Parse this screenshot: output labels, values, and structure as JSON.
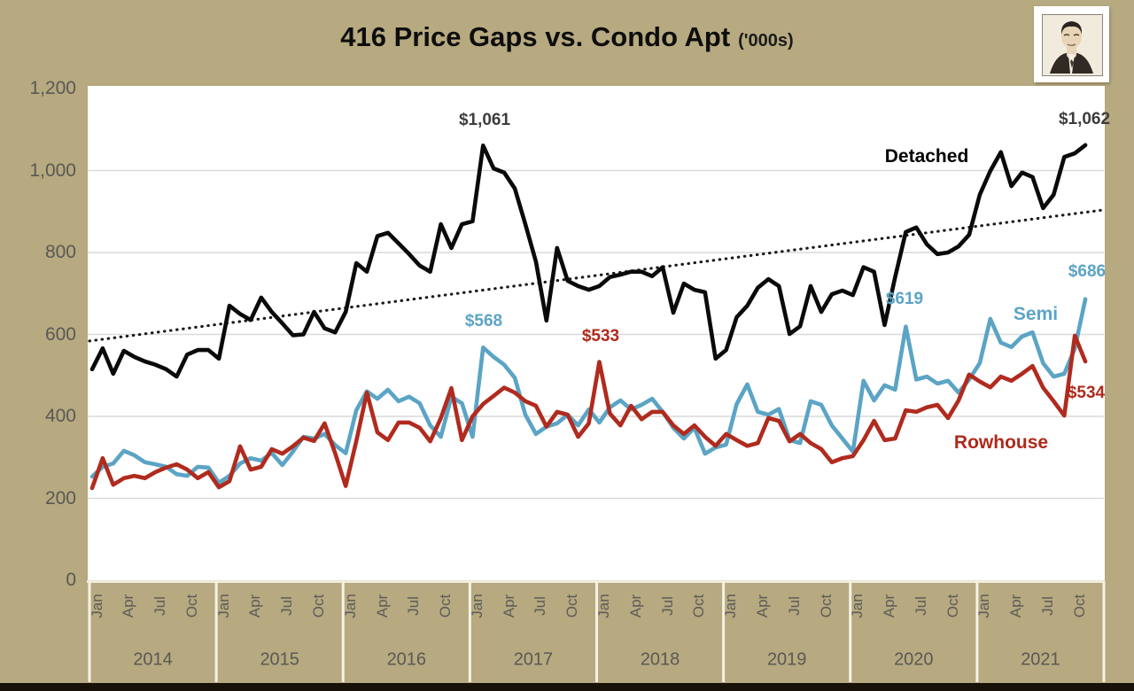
{
  "title": {
    "main": "416 Price Gaps vs. Condo Apt",
    "suffix": "('000s)"
  },
  "logo": {
    "description": "framed portrait sketch of a man in a suit"
  },
  "colors": {
    "background": "#b7a980",
    "plot_background": "#ffffff",
    "gridline": "#d9d9d9",
    "axis_text": "#595955",
    "separator_line": "#f6f2e6",
    "detached": "#0a0a0a",
    "semi": "#5ba4c5",
    "rowhouse": "#b02b1e",
    "trendline": "#1a1a1a",
    "annotation_dark": "#3d3d3d"
  },
  "y_axis": {
    "ticks": [
      "1,200",
      "1,000",
      "800",
      "600",
      "400",
      "200",
      "0"
    ],
    "tick_values": [
      1200,
      1000,
      800,
      600,
      400,
      200,
      0
    ]
  },
  "x_axis": {
    "years": [
      "2014",
      "2015",
      "2016",
      "2017",
      "2018",
      "2019",
      "2020",
      "2021"
    ],
    "month_ticks": [
      "Jan",
      "Apr",
      "Jul",
      "Oct"
    ]
  },
  "chart_data": {
    "type": "line",
    "title": "416 Price Gaps vs. Condo Apt ('000s)",
    "frequency": "monthly",
    "x_start": "2014-01",
    "x_end": "2021-11",
    "ylim": [
      0,
      1200
    ],
    "gridline_values": [
      200,
      400,
      600,
      800,
      1000
    ],
    "legend_position": "labels-on-chart",
    "series": [
      {
        "name": "Detached",
        "color": "#0a0a0a",
        "values": [
          515,
          566,
          504,
          560,
          545,
          534,
          526,
          515,
          497,
          551,
          562,
          562,
          541,
          670,
          650,
          635,
          690,
          655,
          627,
          598,
          600,
          655,
          615,
          605,
          655,
          774,
          753,
          840,
          848,
          822,
          796,
          768,
          753,
          869,
          811,
          869,
          876,
          1061,
          1005,
          995,
          956,
          869,
          778,
          634,
          811,
          731,
          718,
          709,
          718,
          740,
          746,
          753,
          753,
          742,
          764,
          653,
          724,
          709,
          703,
          541,
          562,
          642,
          670,
          714,
          735,
          718,
          601,
          620,
          718,
          655,
          698,
          707,
          696,
          764,
          753,
          623,
          740,
          850,
          861,
          820,
          796,
          800,
          815,
          843,
          941,
          999,
          1045,
          962,
          995,
          984,
          908,
          941,
          1033,
          1042,
          1062
        ]
      },
      {
        "name": "Semi",
        "color": "#5ba4c5",
        "values": [
          253,
          277,
          285,
          316,
          305,
          288,
          283,
          277,
          259,
          255,
          277,
          275,
          238,
          255,
          285,
          298,
          292,
          311,
          281,
          314,
          350,
          346,
          357,
          330,
          310,
          415,
          461,
          443,
          465,
          437,
          448,
          432,
          378,
          350,
          448,
          432,
          350,
          568,
          545,
          526,
          494,
          404,
          357,
          375,
          383,
          404,
          378,
          417,
          385,
          422,
          439,
          417,
          428,
          443,
          411,
          372,
          346,
          372,
          309,
          324,
          331,
          430,
          478,
          411,
          404,
          418,
          342,
          335,
          437,
          428,
          378,
          346,
          314,
          487,
          439,
          476,
          465,
          619,
          490,
          497,
          480,
          487,
          458,
          490,
          530,
          638,
          580,
          569,
          595,
          605,
          530,
          497,
          504,
          566,
          686
        ]
      },
      {
        "name": "Rowhouse",
        "color": "#b02b1e",
        "values": [
          225,
          298,
          233,
          249,
          255,
          249,
          264,
          275,
          283,
          270,
          249,
          264,
          227,
          242,
          327,
          270,
          277,
          320,
          309,
          327,
          348,
          340,
          383,
          310,
          230,
          340,
          458,
          361,
          342,
          385,
          385,
          372,
          339,
          396,
          469,
          342,
          400,
          430,
          450,
          470,
          458,
          437,
          426,
          375,
          411,
          404,
          350,
          383,
          533,
          407,
          378,
          426,
          393,
          411,
          411,
          378,
          357,
          378,
          350,
          328,
          357,
          342,
          328,
          335,
          396,
          389,
          339,
          357,
          335,
          320,
          288,
          298,
          303,
          342,
          389,
          342,
          346,
          415,
          411,
          422,
          428,
          396,
          439,
          502,
          485,
          471,
          497,
          487,
          504,
          523,
          470,
          437,
          402,
          597,
          534
        ]
      }
    ],
    "trendline": {
      "applies_to": "Detached",
      "style": "dotted",
      "start_value": 584,
      "end_value": 904
    },
    "annotations": [
      {
        "text": "$1,061",
        "series": "Detached",
        "month": "2017-02",
        "value": 1061
      },
      {
        "text": "$1,062",
        "series": "Detached",
        "month": "2021-11",
        "value": 1062
      },
      {
        "text": "$568",
        "series": "Semi",
        "month": "2017-02",
        "value": 568
      },
      {
        "text": "$533",
        "series": "Rowhouse",
        "month": "2018-01",
        "value": 533
      },
      {
        "text": "$619",
        "series": "Semi",
        "month": "2020-06",
        "value": 619
      },
      {
        "text": "$686",
        "series": "Semi",
        "month": "2021-11",
        "value": 686
      },
      {
        "text": "$534",
        "series": "Rowhouse",
        "month": "2021-11",
        "value": 534
      }
    ]
  }
}
